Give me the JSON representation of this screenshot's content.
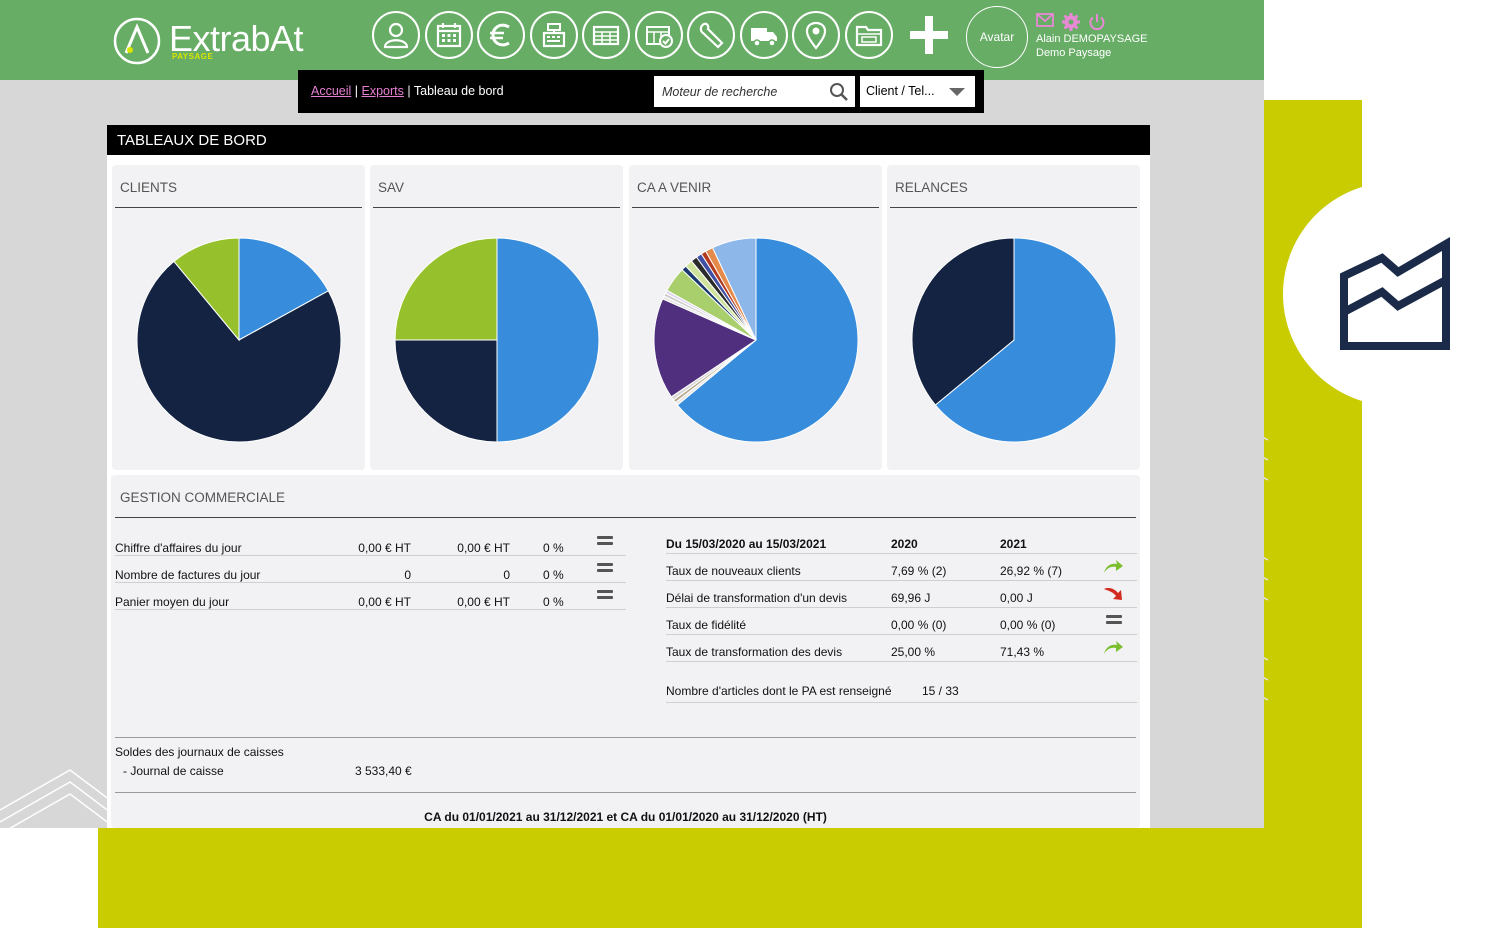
{
  "app": {
    "logo_name": "ExtrabAt",
    "logo_sub": "PAYSAGE",
    "nav_icons": [
      "user-icon",
      "calendar-icon",
      "euro-icon",
      "cash-register-icon",
      "table-icon",
      "calendar-check-icon",
      "wrench-icon",
      "truck-icon",
      "map-pin-icon",
      "folder-icon"
    ],
    "avatar_label": "Avatar",
    "user_name": "Alain DEMOPAYSAGE",
    "user_company": "Demo Paysage",
    "colors": {
      "topbar": "#67ad66",
      "accent_link": "#e57fd1",
      "olive": "#c8cc00",
      "navy": "#1b2a48"
    }
  },
  "breadcrumb": {
    "home": "Accueil",
    "exports": "Exports",
    "current": "Tableau de bord",
    "separator": "|"
  },
  "search": {
    "placeholder": "Moteur de recherche"
  },
  "search_scope": {
    "selected": "Client / Tel..."
  },
  "dashboard": {
    "title": "TABLEAUX DE BORD",
    "cards": [
      {
        "title": "CLIENTS"
      },
      {
        "title": "SAV"
      },
      {
        "title": "CA A VENIR"
      },
      {
        "title": "RELANCES"
      }
    ],
    "gestion": {
      "title": "GESTION COMMERCIALE",
      "daily_rows": [
        {
          "label": "Chiffre d'affaires du jour",
          "v1": "0,00 € HT",
          "v2": "0,00 € HT",
          "pct": "0 %"
        },
        {
          "label": "Nombre de factures du jour",
          "v1": "0",
          "v2": "0",
          "pct": "0 %"
        },
        {
          "label": "Panier moyen du jour",
          "v1": "0,00 € HT",
          "v2": "0,00 € HT",
          "pct": "0 %"
        }
      ],
      "stats_header": {
        "period": "Du 15/03/2020 au 15/03/2021",
        "y1": "2020",
        "y2": "2021"
      },
      "stats_rows": [
        {
          "label": "Taux de nouveaux clients",
          "y1": "7,69 % (2)",
          "y2": "26,92 % (7)",
          "trend": "up"
        },
        {
          "label": "Délai de transformation d'un devis",
          "y1": "69,96 J",
          "y2": "0,00 J",
          "trend": "down"
        },
        {
          "label": "Taux de fidélité",
          "y1": "0,00 % (0)",
          "y2": "0,00 % (0)",
          "trend": "equal"
        },
        {
          "label": "Taux de transformation des devis",
          "y1": "25,00 %",
          "y2": "71,43 %",
          "trend": "up"
        }
      ],
      "articles": {
        "label": "Nombre d'articles dont le PA est renseigné",
        "value": "15 / 33"
      },
      "soldes": {
        "title": "Soldes des journaux de caisses",
        "journal_label": "- Journal de caisse",
        "journal_value": "3 533,40 €"
      },
      "ca_title": "CA du 01/01/2021 au 31/12/2021 et CA du 01/01/2020 au 31/12/2020 (HT)"
    }
  },
  "chart_data": [
    {
      "type": "pie",
      "title": "CLIENTS",
      "values": [
        17,
        72,
        11
      ],
      "colors": [
        "#378ddc",
        "#132341",
        "#97c12c"
      ]
    },
    {
      "type": "pie",
      "title": "SAV",
      "values": [
        50,
        25,
        25
      ],
      "colors": [
        "#378ddc",
        "#132341",
        "#97c12c"
      ]
    },
    {
      "type": "pie",
      "title": "CA A VENIR",
      "values": [
        64,
        0.5,
        0.5,
        0.6,
        16,
        0.5,
        0.5,
        0.5,
        4,
        0.8,
        1.2,
        1,
        0.9,
        0.8,
        1.2,
        7
      ],
      "colors": [
        "#378ddc",
        "#e6e6e6",
        "#b7a98c",
        "#d8d8d8",
        "#4f2f7e",
        "#e8e8e8",
        "#c9c9c9",
        "#e0d6ef",
        "#a8cf6c",
        "#1d3a6f",
        "#cfe29b",
        "#2a2a2a",
        "#3f4fa4",
        "#b3391f",
        "#e58a4a",
        "#8db6e9"
      ]
    },
    {
      "type": "pie",
      "title": "RELANCES",
      "values": [
        64,
        36
      ],
      "colors": [
        "#378ddc",
        "#132341"
      ]
    }
  ]
}
